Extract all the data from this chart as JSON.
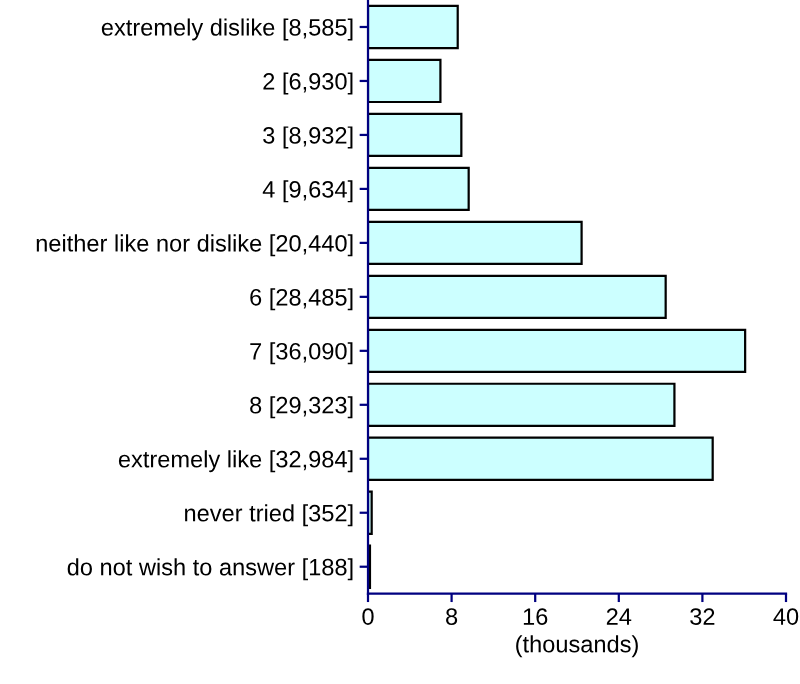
{
  "chart_data": {
    "type": "bar",
    "orientation": "horizontal",
    "xlabel": "(thousands)",
    "categories": [
      "extremely dislike [8,585]",
      "2 [6,930]",
      "3 [8,932]",
      "4 [9,634]",
      "neither like nor dislike [20,440]",
      "6 [28,485]",
      "7 [36,090]",
      "8 [29,323]",
      "extremely like [32,984]",
      "never tried [352]",
      "do not wish to answer [188]"
    ],
    "values": [
      8.585,
      6.93,
      8.932,
      9.634,
      20.44,
      28.485,
      36.09,
      29.323,
      32.984,
      0.352,
      0.188
    ],
    "color": "#ccffff",
    "xlim": [
      0,
      40
    ],
    "xticks": [
      0,
      8,
      16,
      24,
      32,
      40
    ],
    "grid": false,
    "legend": false
  }
}
